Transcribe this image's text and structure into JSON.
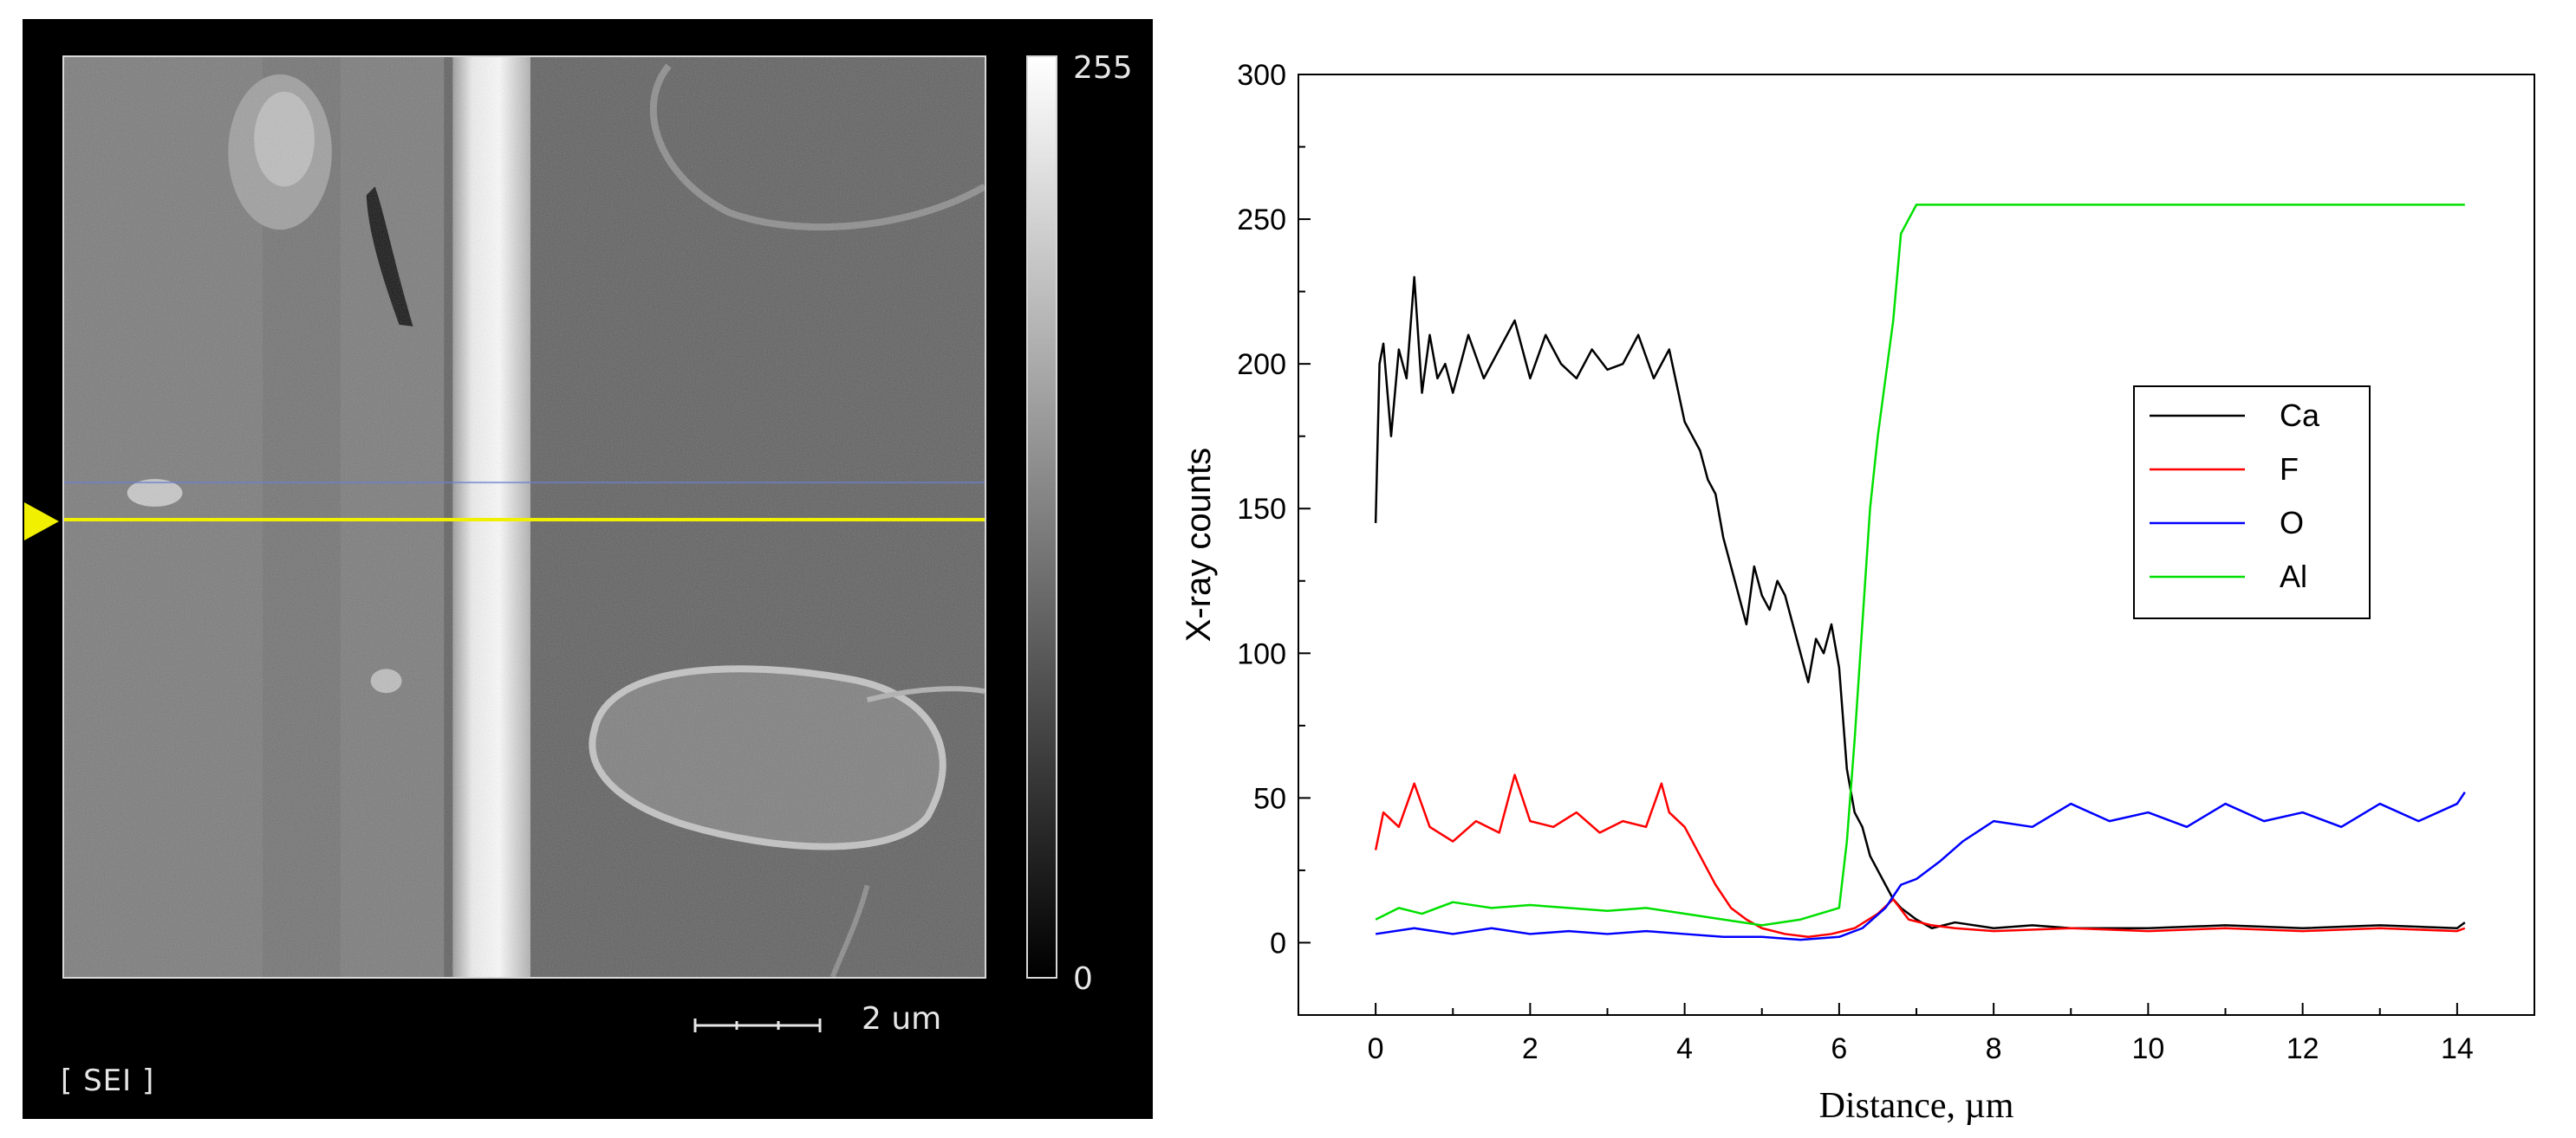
{
  "sem": {
    "colorbar_max": "255",
    "colorbar_min": "0",
    "scale_label": "2 um",
    "mode_label": "[ SEI ]",
    "line_color": "#f0f000"
  },
  "chart_data": {
    "type": "line",
    "xlabel": "Distance, µm",
    "ylabel": "X-ray counts",
    "xlim": [
      -1,
      15
    ],
    "ylim": [
      -25,
      300
    ],
    "xticks": [
      0,
      2,
      4,
      6,
      8,
      10,
      12,
      14
    ],
    "yticks": [
      0,
      50,
      100,
      150,
      200,
      250,
      300
    ],
    "legend_position": "center-right",
    "grid": false,
    "series": [
      {
        "name": "Ca",
        "color": "#000000",
        "x": [
          0,
          0.05,
          0.1,
          0.2,
          0.3,
          0.4,
          0.5,
          0.6,
          0.7,
          0.8,
          0.9,
          1.0,
          1.2,
          1.4,
          1.6,
          1.8,
          2.0,
          2.2,
          2.4,
          2.6,
          2.8,
          3.0,
          3.2,
          3.4,
          3.6,
          3.8,
          4.0,
          4.1,
          4.2,
          4.3,
          4.4,
          4.5,
          4.6,
          4.7,
          4.8,
          4.9,
          5.0,
          5.1,
          5.2,
          5.3,
          5.4,
          5.5,
          5.6,
          5.7,
          5.8,
          5.9,
          6.0,
          6.1,
          6.2,
          6.3,
          6.4,
          6.5,
          6.6,
          6.7,
          6.8,
          7.0,
          7.2,
          7.5,
          8.0,
          8.5,
          9.0,
          10.0,
          11.0,
          12.0,
          13.0,
          14.0,
          14.1
        ],
        "values": [
          145,
          200,
          207,
          175,
          205,
          195,
          230,
          190,
          210,
          195,
          200,
          190,
          210,
          195,
          205,
          215,
          195,
          210,
          200,
          195,
          205,
          198,
          200,
          210,
          195,
          205,
          180,
          175,
          170,
          160,
          155,
          140,
          130,
          120,
          110,
          130,
          120,
          115,
          125,
          120,
          110,
          100,
          90,
          105,
          100,
          110,
          95,
          60,
          45,
          40,
          30,
          25,
          20,
          15,
          12,
          8,
          5,
          7,
          5,
          6,
          5,
          5,
          6,
          5,
          6,
          5,
          7
        ]
      },
      {
        "name": "F",
        "color": "#ff0000",
        "x": [
          0,
          0.1,
          0.3,
          0.5,
          0.7,
          1.0,
          1.3,
          1.6,
          1.8,
          2.0,
          2.3,
          2.6,
          2.9,
          3.2,
          3.5,
          3.7,
          3.8,
          4.0,
          4.2,
          4.4,
          4.6,
          4.8,
          5.0,
          5.3,
          5.6,
          5.9,
          6.2,
          6.5,
          6.7,
          6.9,
          7.2,
          7.5,
          8.0,
          9.0,
          10.0,
          11.0,
          12.0,
          13.0,
          14.0,
          14.1
        ],
        "values": [
          32,
          45,
          40,
          55,
          40,
          35,
          42,
          38,
          58,
          42,
          40,
          45,
          38,
          42,
          40,
          55,
          45,
          40,
          30,
          20,
          12,
          8,
          5,
          3,
          2,
          3,
          5,
          10,
          15,
          8,
          6,
          5,
          4,
          5,
          4,
          5,
          4,
          5,
          4,
          5
        ]
      },
      {
        "name": "O",
        "color": "#0000ff",
        "x": [
          0,
          0.5,
          1.0,
          1.5,
          2.0,
          2.5,
          3.0,
          3.5,
          4.0,
          4.5,
          5.0,
          5.5,
          6.0,
          6.3,
          6.6,
          6.8,
          7.0,
          7.3,
          7.6,
          8.0,
          8.5,
          9.0,
          9.5,
          10.0,
          10.5,
          11.0,
          11.5,
          12.0,
          12.5,
          13.0,
          13.5,
          14.0,
          14.1
        ],
        "values": [
          3,
          5,
          3,
          5,
          3,
          4,
          3,
          4,
          3,
          2,
          2,
          1,
          2,
          5,
          12,
          20,
          22,
          28,
          35,
          42,
          40,
          48,
          42,
          45,
          40,
          48,
          42,
          45,
          40,
          48,
          42,
          48,
          52
        ]
      },
      {
        "name": "Al",
        "color": "#00e000",
        "x": [
          0,
          0.3,
          0.6,
          1.0,
          1.5,
          2.0,
          2.5,
          3.0,
          3.5,
          4.0,
          4.5,
          5.0,
          5.5,
          6.0,
          6.1,
          6.2,
          6.3,
          6.4,
          6.5,
          6.6,
          6.7,
          6.8,
          6.9,
          7.0,
          8.0,
          10.0,
          12.0,
          14.1
        ],
        "values": [
          8,
          12,
          10,
          14,
          12,
          13,
          12,
          11,
          12,
          10,
          8,
          6,
          8,
          12,
          35,
          70,
          110,
          150,
          175,
          195,
          215,
          245,
          250,
          255,
          255,
          255,
          255,
          255
        ]
      }
    ]
  }
}
